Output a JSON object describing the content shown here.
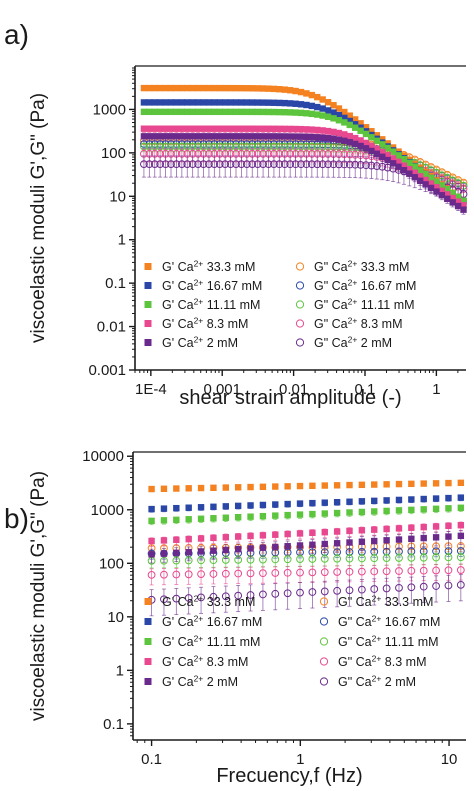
{
  "colors": {
    "orange": "#f58220",
    "blue": "#2a47a8",
    "green": "#5cc43d",
    "pink": "#e8488f",
    "purple": "#6a2a8c",
    "axis": "#1a1a1a"
  },
  "chart_data": [
    {
      "type": "scatter",
      "panel_label": "a)",
      "xlabel": "shear strain amplitude (-)",
      "ylabel": "viscoelastic moduli G',G\" (Pa)",
      "xscale": "log",
      "yscale": "log",
      "xlim": [
        6e-05,
        2.6
      ],
      "ylim": [
        0.001,
        10000
      ],
      "xticks": [
        0.0001,
        0.001,
        0.01,
        0.1,
        1
      ],
      "xticklabels": [
        "1E-4",
        "0.001",
        "0.01",
        "0.1",
        "1"
      ],
      "yticks": [
        0.001,
        0.01,
        0.1,
        1,
        10,
        100,
        1000
      ],
      "yticklabels": [
        "0.001",
        "0.01",
        "0.1",
        "1",
        "10",
        "100",
        "1000"
      ],
      "legend_position": "bottom-inside",
      "series": [
        {
          "name": "G' Ca2+ 33.3 mM",
          "symbol": "filled-square",
          "color": "orange",
          "model": {
            "plateau": 3100,
            "onset": 0.02,
            "slope": 1.25,
            "err": 0.05
          }
        },
        {
          "name": "G' Ca2+ 16.67 mM",
          "symbol": "filled-square",
          "color": "blue",
          "model": {
            "plateau": 1450,
            "onset": 0.03,
            "slope": 1.2,
            "err": 0.06
          }
        },
        {
          "name": "G' Ca2+ 11.11 mM",
          "symbol": "filled-square",
          "color": "green",
          "model": {
            "plateau": 880,
            "onset": 0.04,
            "slope": 1.15,
            "err": 0.08
          }
        },
        {
          "name": "G' Ca2+ 8.3 mM",
          "symbol": "filled-square",
          "color": "pink",
          "model": {
            "plateau": 360,
            "onset": 0.06,
            "slope": 1.1,
            "err": 0.12
          }
        },
        {
          "name": "G' Ca2+ 2 mM",
          "symbol": "filled-square",
          "color": "purple",
          "model": {
            "plateau": 240,
            "onset": 0.07,
            "slope": 1.1,
            "err": 0.15
          }
        },
        {
          "name": "G\" Ca2+ 33.3 mM",
          "symbol": "open-circle",
          "color": "orange",
          "model": {
            "plateau": 190,
            "onset": 0.15,
            "slope": 0.8,
            "err": 0.12
          }
        },
        {
          "name": "G\" Ca2+ 16.67 mM",
          "symbol": "open-circle",
          "color": "blue",
          "model": {
            "plateau": 160,
            "onset": 0.15,
            "slope": 0.8,
            "err": 0.15
          }
        },
        {
          "name": "G\" Ca2+ 11.11 mM",
          "symbol": "open-circle",
          "color": "green",
          "model": {
            "plateau": 140,
            "onset": 0.18,
            "slope": 0.8,
            "err": 0.18
          }
        },
        {
          "name": "G\" Ca2+ 8.3 mM",
          "symbol": "open-circle",
          "color": "pink",
          "model": {
            "plateau": 95,
            "onset": 0.2,
            "slope": 0.75,
            "err": 0.3
          }
        },
        {
          "name": "G\" Ca2+ 2 mM",
          "symbol": "open-circle",
          "color": "purple",
          "model": {
            "plateau": 55,
            "onset": 0.25,
            "slope": 0.7,
            "err": 0.55
          }
        }
      ]
    },
    {
      "type": "scatter",
      "panel_label": "b)",
      "xlabel": "Frecuency,f (Hz)",
      "ylabel": "viscoelastic moduli G',G\" (Pa)",
      "xscale": "log",
      "yscale": "log",
      "xlim": [
        0.075,
        13
      ],
      "ylim": [
        0.05,
        12000
      ],
      "xticks": [
        0.1,
        1,
        10
      ],
      "xticklabels": [
        "0.1",
        "1",
        "10"
      ],
      "yticks": [
        0.1,
        1,
        10,
        100,
        1000,
        10000
      ],
      "yticklabels": [
        "0.1",
        "1",
        "10",
        "100",
        "1000",
        "10000"
      ],
      "legend_position": "bottom-inside",
      "series": [
        {
          "name": "G' Ca2+ 33.3 mM",
          "symbol": "filled-square",
          "color": "orange",
          "model": {
            "start": 2400,
            "end": 3200,
            "err": 0.04
          }
        },
        {
          "name": "G' Ca2+ 16.67 mM",
          "symbol": "filled-square",
          "color": "blue",
          "model": {
            "start": 1000,
            "end": 1700,
            "err": 0.08
          }
        },
        {
          "name": "G' Ca2+ 11.11 mM",
          "symbol": "filled-square",
          "color": "green",
          "model": {
            "start": 600,
            "end": 1100,
            "err": 0.1
          }
        },
        {
          "name": "G' Ca2+ 8.3 mM",
          "symbol": "filled-square",
          "color": "pink",
          "model": {
            "start": 250,
            "end": 520,
            "err": 0.15
          }
        },
        {
          "name": "G' Ca2+ 2 mM",
          "symbol": "filled-square",
          "color": "purple",
          "model": {
            "start": 140,
            "end": 330,
            "err": 0.25
          }
        },
        {
          "name": "G\" Ca2+ 33.3 mM",
          "symbol": "open-circle",
          "color": "orange",
          "model": {
            "start": 190,
            "end": 210,
            "err": 0.15
          }
        },
        {
          "name": "G\" Ca2+ 16.67 mM",
          "symbol": "open-circle",
          "color": "blue",
          "model": {
            "start": 150,
            "end": 170,
            "err": 0.15
          }
        },
        {
          "name": "G\" Ca2+ 11.11 mM",
          "symbol": "open-circle",
          "color": "green",
          "model": {
            "start": 110,
            "end": 130,
            "err": 0.2
          }
        },
        {
          "name": "G\" Ca2+ 8.3 mM",
          "symbol": "open-circle",
          "color": "pink",
          "model": {
            "start": 60,
            "end": 75,
            "err": 0.3
          }
        },
        {
          "name": "G\" Ca2+ 2 mM",
          "symbol": "open-circle",
          "color": "purple",
          "model": {
            "start": 20,
            "end": 40,
            "err": 0.55
          }
        }
      ]
    }
  ]
}
